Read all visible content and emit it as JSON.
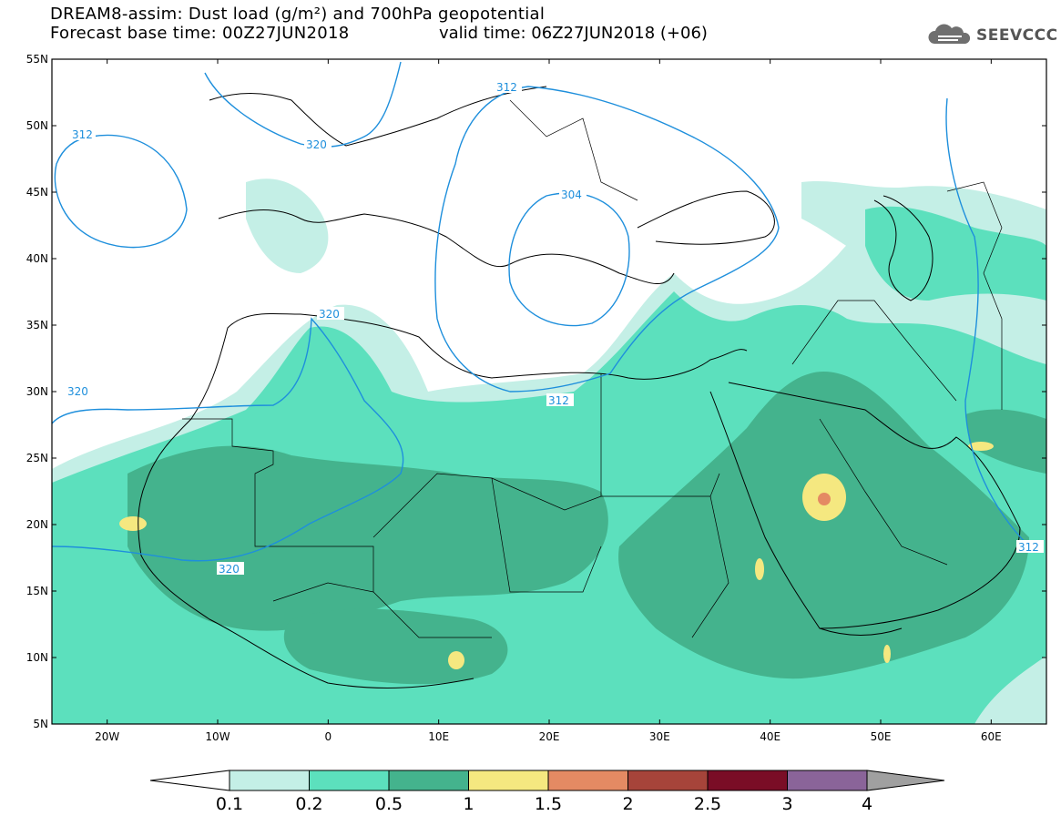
{
  "header": {
    "title_line1": "DREAM8-assim: Dust load (g/m²) and 700hPa geopotential",
    "title_line2": "Forecast base time: 00Z27JUN2018",
    "valid_time": "valid time: 06Z27JUN2018 (+06)",
    "logo_text": "SEEVCCC",
    "logo_icon": "cloud-logo-icon"
  },
  "map": {
    "lon_range": [
      -25,
      65
    ],
    "lat_range": [
      5,
      55
    ],
    "lat_labels": [
      "55N",
      "50N",
      "45N",
      "40N",
      "35N",
      "30N",
      "25N",
      "20N",
      "15N",
      "10N",
      "5N"
    ],
    "lon_labels": [
      "20W",
      "10W",
      "0",
      "10E",
      "20E",
      "30E",
      "40E",
      "50E",
      "60E"
    ],
    "contour_labels": [
      "312",
      "320",
      "320",
      "304",
      "312",
      "320",
      "320",
      "312",
      "312"
    ]
  },
  "legend": {
    "colors": [
      "#ffffff",
      "#c4efe6",
      "#5ce0bd",
      "#44b38d",
      "#f5e880",
      "#e48a63",
      "#a6443a",
      "#7a0d26",
      "#8a6499",
      "#a0a0a0"
    ],
    "labels": [
      "0.1",
      "0.2",
      "0.5",
      "1",
      "1.5",
      "2",
      "2.5",
      "3",
      "4"
    ]
  }
}
